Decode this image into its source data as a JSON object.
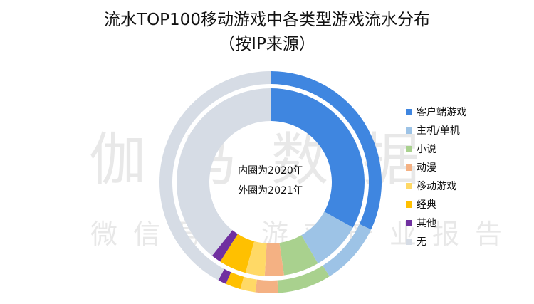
{
  "title": {
    "line1": "流水TOP100移动游戏中各类型游戏流水分布",
    "line2": "（按IP来源）"
  },
  "center": {
    "inner_label": "内圈为2020年",
    "outer_label": "外圈为2021年"
  },
  "watermark": {
    "line1": "伽马数据",
    "line2": "微信号：游戏产业报告"
  },
  "legend": [
    {
      "label": "客户端游戏",
      "color": "#3f86e0"
    },
    {
      "label": "主机/单机",
      "color": "#9dc3e6"
    },
    {
      "label": "小说",
      "color": "#a9d18e"
    },
    {
      "label": "动漫",
      "color": "#f4b183"
    },
    {
      "label": "移动游戏",
      "color": "#ffd966"
    },
    {
      "label": "经典",
      "color": "#ffc000"
    },
    {
      "label": "其他",
      "color": "#7030a0"
    },
    {
      "label": "无",
      "color": "#d6dce5"
    }
  ],
  "chart_data": {
    "type": "pie",
    "subtype": "double-donut",
    "title": "流水TOP100移动游戏中各类型游戏流水分布（按IP来源）",
    "categories": [
      "客户端游戏",
      "主机/单机",
      "小说",
      "动漫",
      "移动游戏",
      "经典",
      "其他",
      "无"
    ],
    "series": [
      {
        "name": "2020年（内圈）",
        "values": [
          33.0,
          8.6,
          6.1,
          3.3,
          3.3,
          4.7,
          1.7,
          39.3
        ]
      },
      {
        "name": "2021年（外圈）",
        "values": [
          32.0,
          9.1,
          7.8,
          3.3,
          2.2,
          2.2,
          1.2,
          42.2
        ]
      }
    ],
    "annotations": [
      "内圈为2020年",
      "外圈为2021年"
    ],
    "legend_position": "right",
    "unit": "%"
  }
}
